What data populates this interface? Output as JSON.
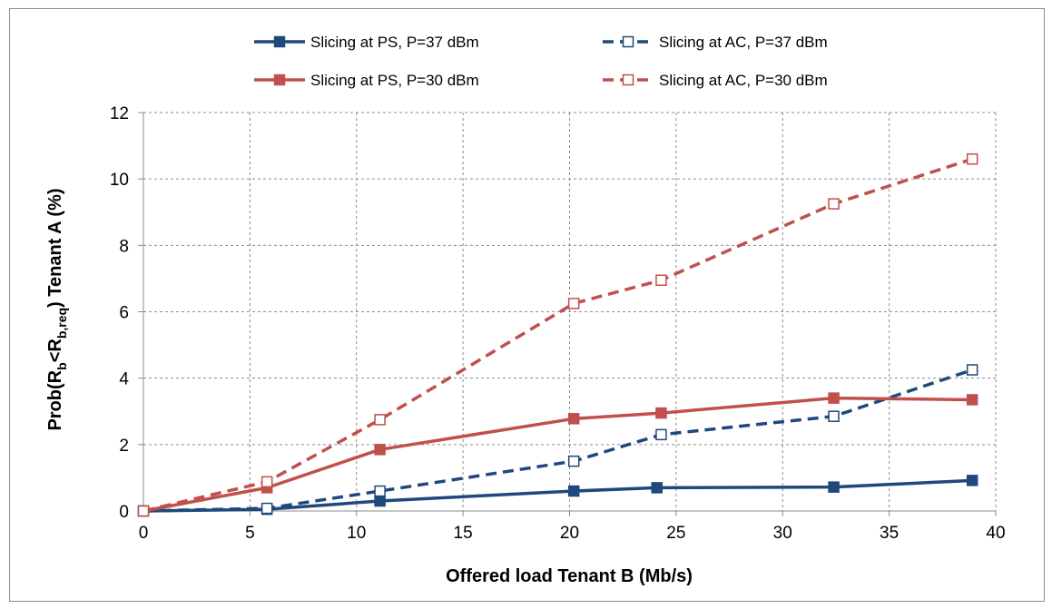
{
  "chart_data": {
    "type": "line",
    "title": "",
    "xlabel": "Offered load Tenant B (Mb/s)",
    "ylabel": {
      "prefix": "Prob(R",
      "sub1": "b",
      "mid": "<R",
      "sub2": "b,req",
      "suffix": ") Tenant A (%)"
    },
    "xlim": [
      0,
      40
    ],
    "ylim": [
      0,
      12
    ],
    "xticks": [
      0,
      5,
      10,
      15,
      20,
      25,
      30,
      35,
      40
    ],
    "yticks": [
      0,
      2,
      4,
      6,
      8,
      10,
      12
    ],
    "grid": true,
    "legend_position": "top",
    "series": [
      {
        "name": "Slicing at PS, P=37 dBm",
        "color": "#1f497d",
        "dash": "solid",
        "marker": "filled-square",
        "x": [
          0,
          5.8,
          11.1,
          20.2,
          24.1,
          32.4,
          38.9
        ],
        "y": [
          0.0,
          0.05,
          0.3,
          0.6,
          0.7,
          0.72,
          0.92
        ]
      },
      {
        "name": "Slicing at AC, P=37 dBm",
        "color": "#1f497d",
        "dash": "dashed",
        "marker": "hollow-square",
        "x": [
          0,
          5.8,
          11.1,
          20.2,
          24.3,
          32.4,
          38.9
        ],
        "y": [
          0.0,
          0.08,
          0.6,
          1.5,
          2.3,
          2.85,
          4.25
        ]
      },
      {
        "name": "Slicing at PS, P=30 dBm",
        "color": "#c0504d",
        "dash": "solid",
        "marker": "filled-square",
        "x": [
          0,
          5.8,
          11.1,
          20.2,
          24.3,
          32.4,
          38.9
        ],
        "y": [
          0.0,
          0.7,
          1.85,
          2.78,
          2.95,
          3.4,
          3.35
        ]
      },
      {
        "name": "Slicing at AC, P=30 dBm",
        "color": "#c0504d",
        "dash": "dashed",
        "marker": "hollow-square",
        "x": [
          0,
          5.8,
          11.1,
          20.2,
          24.3,
          32.4,
          38.9
        ],
        "y": [
          0.0,
          0.88,
          2.75,
          6.25,
          6.95,
          9.25,
          10.6
        ]
      }
    ]
  }
}
